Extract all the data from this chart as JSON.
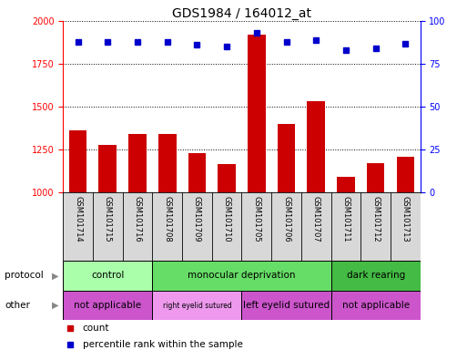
{
  "title": "GDS1984 / 164012_at",
  "samples": [
    "GSM101714",
    "GSM101715",
    "GSM101716",
    "GSM101708",
    "GSM101709",
    "GSM101710",
    "GSM101705",
    "GSM101706",
    "GSM101707",
    "GSM101711",
    "GSM101712",
    "GSM101713"
  ],
  "count_values": [
    1360,
    1280,
    1340,
    1340,
    1230,
    1165,
    1920,
    1400,
    1530,
    1090,
    1170,
    1210
  ],
  "percentile_values": [
    88,
    88,
    88,
    88,
    86,
    85,
    93,
    88,
    89,
    83,
    84,
    87
  ],
  "ylim_left": [
    1000,
    2000
  ],
  "ylim_right": [
    0,
    100
  ],
  "yticks_left": [
    1000,
    1250,
    1500,
    1750,
    2000
  ],
  "yticks_right": [
    0,
    25,
    50,
    75,
    100
  ],
  "bar_color": "#cc0000",
  "dot_color": "#0000cc",
  "bar_width": 0.6,
  "protocol_groups": [
    {
      "label": "control",
      "start": 0,
      "end": 2,
      "color": "#aaffaa"
    },
    {
      "label": "monocular deprivation",
      "start": 3,
      "end": 8,
      "color": "#66dd66"
    },
    {
      "label": "dark rearing",
      "start": 9,
      "end": 11,
      "color": "#44bb44"
    }
  ],
  "other_groups": [
    {
      "label": "not applicable",
      "start": 0,
      "end": 2,
      "color": "#cc55cc"
    },
    {
      "label": "right eyelid sutured",
      "start": 3,
      "end": 5,
      "color": "#ee99ee"
    },
    {
      "label": "left eyelid sutured",
      "start": 6,
      "end": 8,
      "color": "#cc55cc"
    },
    {
      "label": "not applicable",
      "start": 9,
      "end": 11,
      "color": "#cc55cc"
    }
  ],
  "protocol_label": "protocol",
  "other_label": "other",
  "legend_count_label": "count",
  "legend_pct_label": "percentile rank within the sample",
  "title_fontsize": 10,
  "tick_fontsize": 7,
  "sample_fontsize": 6,
  "row_label_fontsize": 7.5,
  "legend_fontsize": 7.5,
  "xtick_bg": "#d8d8d8",
  "grid_color": "black",
  "grid_linestyle": ":",
  "grid_linewidth": 0.7
}
